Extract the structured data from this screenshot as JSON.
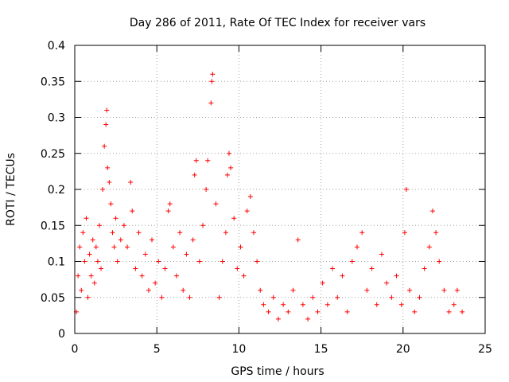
{
  "chart_data": {
    "type": "scatter",
    "title": "Day 286 of 2011, Rate Of TEC Index for receiver vars",
    "xlabel": "GPS time / hours",
    "ylabel": "ROTI / TECUs",
    "xlim": [
      0,
      25
    ],
    "ylim": [
      0,
      0.4
    ],
    "xticks": [
      0,
      5,
      10,
      15,
      20,
      25
    ],
    "xtick_labels": [
      "0",
      "5",
      "10",
      "15",
      "20",
      "25"
    ],
    "yticks": [
      0,
      0.05,
      0.1,
      0.15,
      0.2,
      0.25,
      0.3,
      0.35,
      0.4
    ],
    "ytick_labels": [
      "0",
      "0.05",
      "0.1",
      "0.15",
      "0.2",
      "0.25",
      "0.3",
      "0.35",
      "0.4"
    ],
    "grid": true,
    "marker": "+",
    "color": "#ff0000",
    "series": [
      {
        "name": "ROTI",
        "points": [
          [
            0.1,
            0.03
          ],
          [
            0.2,
            0.08
          ],
          [
            0.3,
            0.12
          ],
          [
            0.4,
            0.06
          ],
          [
            0.5,
            0.14
          ],
          [
            0.6,
            0.1
          ],
          [
            0.7,
            0.16
          ],
          [
            0.8,
            0.05
          ],
          [
            0.9,
            0.11
          ],
          [
            1.0,
            0.08
          ],
          [
            1.1,
            0.13
          ],
          [
            1.2,
            0.07
          ],
          [
            1.3,
            0.12
          ],
          [
            1.4,
            0.1
          ],
          [
            1.5,
            0.15
          ],
          [
            1.6,
            0.09
          ],
          [
            1.7,
            0.2
          ],
          [
            1.8,
            0.26
          ],
          [
            1.9,
            0.29
          ],
          [
            1.95,
            0.31
          ],
          [
            2.0,
            0.23
          ],
          [
            2.1,
            0.21
          ],
          [
            2.2,
            0.18
          ],
          [
            2.3,
            0.14
          ],
          [
            2.4,
            0.12
          ],
          [
            2.5,
            0.16
          ],
          [
            2.6,
            0.1
          ],
          [
            2.8,
            0.13
          ],
          [
            3.0,
            0.15
          ],
          [
            3.2,
            0.12
          ],
          [
            3.4,
            0.21
          ],
          [
            3.5,
            0.17
          ],
          [
            3.7,
            0.09
          ],
          [
            3.9,
            0.14
          ],
          [
            4.1,
            0.08
          ],
          [
            4.3,
            0.11
          ],
          [
            4.5,
            0.06
          ],
          [
            4.7,
            0.13
          ],
          [
            4.9,
            0.07
          ],
          [
            5.1,
            0.1
          ],
          [
            5.3,
            0.05
          ],
          [
            5.5,
            0.09
          ],
          [
            5.7,
            0.17
          ],
          [
            5.8,
            0.18
          ],
          [
            6.0,
            0.12
          ],
          [
            6.2,
            0.08
          ],
          [
            6.4,
            0.14
          ],
          [
            6.6,
            0.06
          ],
          [
            6.8,
            0.11
          ],
          [
            7.0,
            0.05
          ],
          [
            7.2,
            0.13
          ],
          [
            7.3,
            0.22
          ],
          [
            7.4,
            0.24
          ],
          [
            7.6,
            0.1
          ],
          [
            7.8,
            0.15
          ],
          [
            8.0,
            0.2
          ],
          [
            8.1,
            0.24
          ],
          [
            8.3,
            0.32
          ],
          [
            8.35,
            0.35
          ],
          [
            8.4,
            0.36
          ],
          [
            8.6,
            0.18
          ],
          [
            8.8,
            0.05
          ],
          [
            9.0,
            0.1
          ],
          [
            9.2,
            0.14
          ],
          [
            9.3,
            0.22
          ],
          [
            9.4,
            0.25
          ],
          [
            9.5,
            0.23
          ],
          [
            9.7,
            0.16
          ],
          [
            9.9,
            0.09
          ],
          [
            10.1,
            0.12
          ],
          [
            10.3,
            0.08
          ],
          [
            10.5,
            0.17
          ],
          [
            10.7,
            0.19
          ],
          [
            10.9,
            0.14
          ],
          [
            11.1,
            0.1
          ],
          [
            11.3,
            0.06
          ],
          [
            11.5,
            0.04
          ],
          [
            11.8,
            0.03
          ],
          [
            12.1,
            0.05
          ],
          [
            12.4,
            0.02
          ],
          [
            12.7,
            0.04
          ],
          [
            13.0,
            0.03
          ],
          [
            13.3,
            0.06
          ],
          [
            13.6,
            0.13
          ],
          [
            13.9,
            0.04
          ],
          [
            14.2,
            0.02
          ],
          [
            14.5,
            0.05
          ],
          [
            14.8,
            0.03
          ],
          [
            15.1,
            0.07
          ],
          [
            15.4,
            0.04
          ],
          [
            15.7,
            0.09
          ],
          [
            16.0,
            0.05
          ],
          [
            16.3,
            0.08
          ],
          [
            16.6,
            0.03
          ],
          [
            16.9,
            0.1
          ],
          [
            17.2,
            0.12
          ],
          [
            17.5,
            0.14
          ],
          [
            17.8,
            0.06
          ],
          [
            18.1,
            0.09
          ],
          [
            18.4,
            0.04
          ],
          [
            18.7,
            0.11
          ],
          [
            19.0,
            0.07
          ],
          [
            19.3,
            0.05
          ],
          [
            19.6,
            0.08
          ],
          [
            19.9,
            0.04
          ],
          [
            20.1,
            0.14
          ],
          [
            20.2,
            0.2
          ],
          [
            20.4,
            0.06
          ],
          [
            20.7,
            0.03
          ],
          [
            21.0,
            0.05
          ],
          [
            21.3,
            0.09
          ],
          [
            21.6,
            0.12
          ],
          [
            21.8,
            0.17
          ],
          [
            22.0,
            0.14
          ],
          [
            22.2,
            0.1
          ],
          [
            22.5,
            0.06
          ],
          [
            22.8,
            0.03
          ],
          [
            23.1,
            0.04
          ],
          [
            23.3,
            0.06
          ],
          [
            23.6,
            0.03
          ]
        ]
      }
    ]
  }
}
